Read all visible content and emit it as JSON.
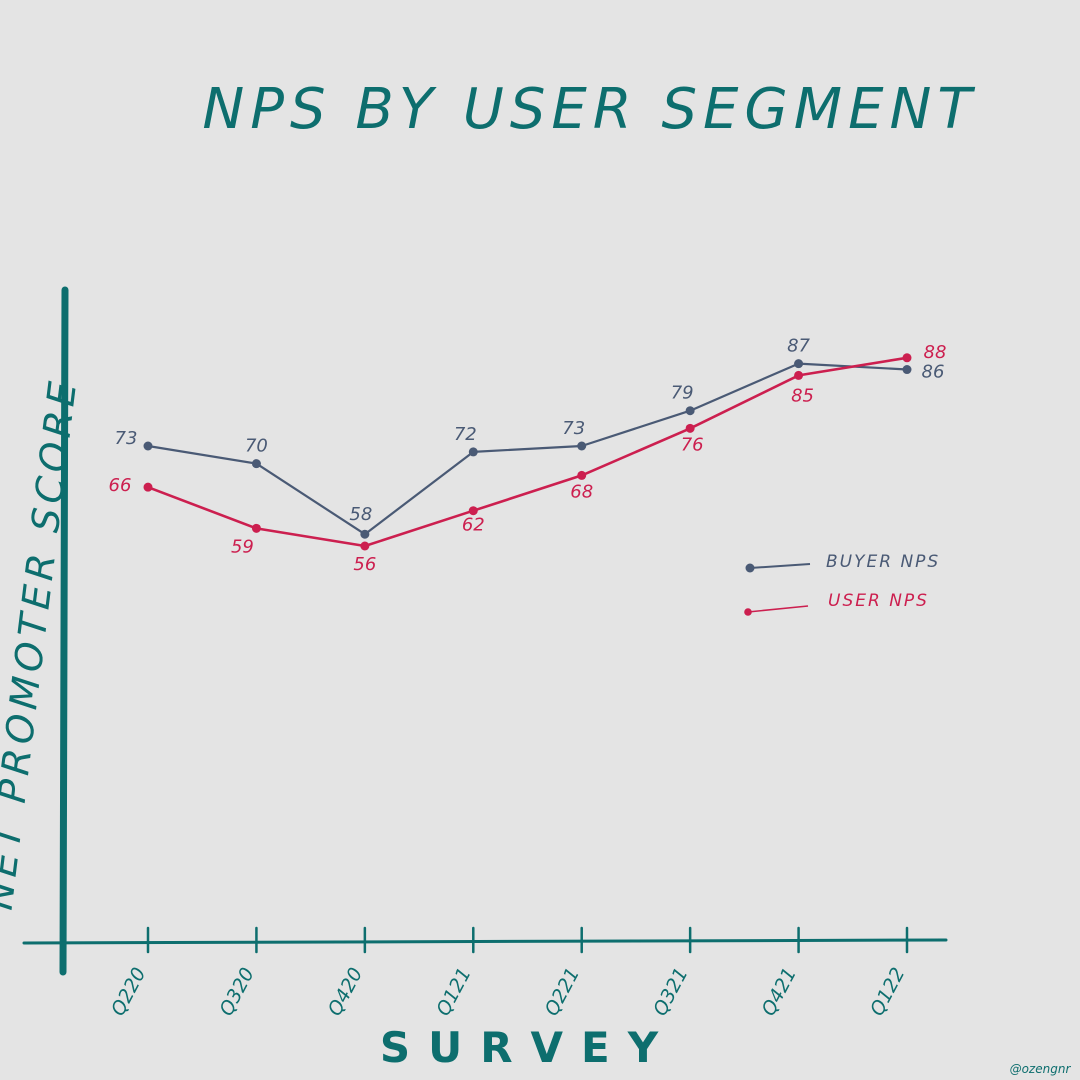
{
  "colors": {
    "background": "#e4e4e4",
    "teal": "#0d6e6e",
    "buyer": "#4a5a75",
    "user": "#cc1f4f"
  },
  "credit": "@ozengnr",
  "chart_data": {
    "type": "line",
    "title": "NPS BY USER SEGMENT",
    "xlabel": "SURVEY",
    "ylabel": "NET PROMOTER SCORE",
    "categories": [
      "Q220",
      "Q320",
      "Q420",
      "Q121",
      "Q221",
      "Q321",
      "Q421",
      "Q122"
    ],
    "series": [
      {
        "name": "BUYER NPS",
        "values": [
          73,
          70,
          58,
          72,
          73,
          79,
          87,
          86
        ],
        "color": "#4a5a75"
      },
      {
        "name": "USER NPS",
        "values": [
          66,
          59,
          56,
          62,
          68,
          76,
          85,
          88
        ],
        "color": "#cc1f4f"
      }
    ],
    "ylim": [
      0,
      100
    ],
    "grid": false,
    "legend_position": "right"
  }
}
